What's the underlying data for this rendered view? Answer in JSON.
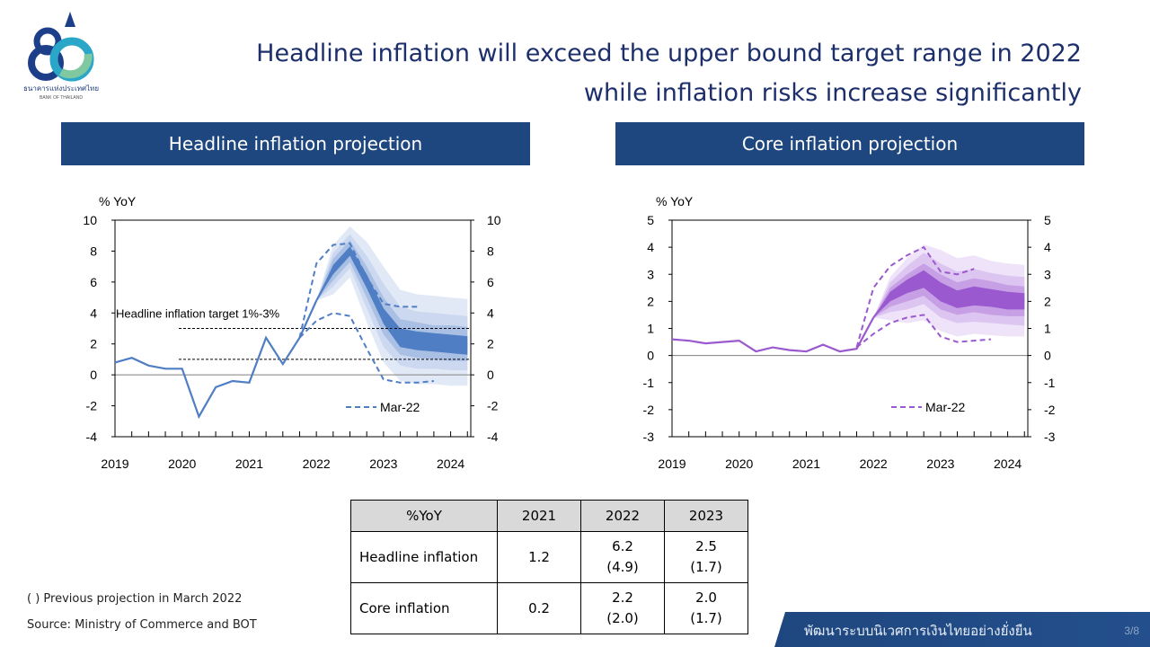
{
  "logo": {
    "thai": "ธนาคารแห่งประเทศไทย",
    "english": "BANK OF THAILAND",
    "mark": "80",
    "colors": [
      "#1d3f8a",
      "#2aa7c8",
      "#7fc8a0"
    ]
  },
  "title": {
    "line1": "Headline inflation will exceed the upper bound target range in 2022",
    "line2": "while inflation risks increase significantly"
  },
  "panels": {
    "left": "Headline inflation projection",
    "right": "Core inflation projection"
  },
  "chart_data": [
    {
      "type": "line",
      "title": "Headline inflation projection",
      "ylabel": "% YoY",
      "ylim": [
        -4,
        10
      ],
      "yticks": [
        "10",
        "8",
        "6",
        "4",
        "2",
        "0",
        "-2",
        "-4"
      ],
      "xticks": [
        "2019",
        "2020",
        "2021",
        "2022",
        "2023",
        "2024"
      ],
      "right_axis": true,
      "annotation": "Headline inflation target 1%-3%",
      "target_range": [
        1,
        3
      ],
      "colors": {
        "line": "#4f7ec4",
        "fan": [
          "#e2e9f6",
          "#cbd8ef",
          "#a9bfe4",
          "#4f7ec4"
        ]
      },
      "series": [
        {
          "role": "actual",
          "x": [
            2019.0,
            2019.25,
            2019.5,
            2019.75,
            2020.0,
            2020.25,
            2020.5,
            2020.75,
            2021.0,
            2021.25,
            2021.5,
            2021.75,
            2022.0
          ],
          "y": [
            0.8,
            1.1,
            0.6,
            0.4,
            0.4,
            -2.7,
            -0.8,
            -0.4,
            -0.5,
            2.4,
            0.7,
            2.4,
            4.8
          ]
        },
        {
          "role": "projection",
          "x": [
            2022.0,
            2022.25,
            2022.5,
            2022.75,
            2023.0,
            2023.25,
            2023.5,
            2023.75,
            2024.0,
            2024.25
          ],
          "y": [
            4.8,
            6.8,
            8.0,
            6.0,
            3.8,
            2.4,
            2.2,
            2.1,
            2.0,
            1.9
          ]
        },
        {
          "name": "Mar-22",
          "role": "previous_upper",
          "dashed": true,
          "x": [
            2021.75,
            2022.0,
            2022.25,
            2022.5,
            2022.75,
            2023.0,
            2023.25,
            2023.5
          ],
          "y": [
            2.4,
            7.2,
            8.4,
            8.5,
            6.3,
            4.6,
            4.4,
            4.4
          ]
        },
        {
          "role": "previous_lower",
          "dashed": true,
          "x": [
            2021.75,
            2022.0,
            2022.25,
            2022.5,
            2022.75,
            2023.0,
            2023.25,
            2023.5,
            2023.75
          ],
          "y": [
            2.4,
            3.5,
            4.0,
            3.8,
            1.7,
            -0.3,
            -0.5,
            -0.5,
            -0.4
          ]
        }
      ],
      "fan": {
        "x": [
          2022.0,
          2022.25,
          2022.5,
          2022.75,
          2023.0,
          2023.25,
          2023.5,
          2023.75,
          2024.0,
          2024.25
        ],
        "bands": [
          {
            "lower": [
              4.8,
              5.2,
              6.3,
              3.4,
              0.8,
              -0.4,
              -0.6,
              -0.6,
              -0.7,
              -0.7
            ],
            "upper": [
              4.8,
              8.4,
              9.6,
              8.6,
              7.0,
              5.5,
              5.2,
              5.1,
              5.0,
              4.9
            ]
          },
          {
            "lower": [
              4.8,
              5.7,
              6.9,
              4.3,
              1.8,
              0.6,
              0.4,
              0.4,
              0.3,
              0.3
            ],
            "upper": [
              4.8,
              7.9,
              9.1,
              7.7,
              5.9,
              4.4,
              4.1,
              4.0,
              3.9,
              3.8
            ]
          },
          {
            "lower": [
              4.8,
              6.1,
              7.3,
              5.0,
              2.6,
              1.3,
              1.1,
              1.0,
              0.9,
              0.9
            ],
            "upper": [
              4.8,
              7.5,
              8.7,
              7.0,
              5.0,
              3.6,
              3.4,
              3.2,
              3.2,
              3.1
            ]
          },
          {
            "lower": [
              4.8,
              6.5,
              7.7,
              5.6,
              3.3,
              1.8,
              1.6,
              1.5,
              1.4,
              1.3
            ],
            "upper": [
              4.8,
              7.1,
              8.3,
              6.5,
              4.3,
              3.0,
              2.8,
              2.7,
              2.6,
              2.5
            ]
          }
        ]
      }
    },
    {
      "type": "line",
      "title": "Core inflation projection",
      "ylabel": "% YoY",
      "ylim": [
        -3,
        5
      ],
      "yticks": [
        "5",
        "4",
        "3",
        "2",
        "1",
        "0",
        "-1",
        "-2",
        "-3"
      ],
      "xticks": [
        "2019",
        "2020",
        "2021",
        "2022",
        "2023",
        "2024"
      ],
      "right_axis": true,
      "colors": {
        "line": "#9b59d0",
        "fan": [
          "#eee3f8",
          "#dcc5f0",
          "#c69fe5",
          "#9b59d0"
        ]
      },
      "series": [
        {
          "role": "actual",
          "x": [
            2019.0,
            2019.25,
            2019.5,
            2019.75,
            2020.0,
            2020.25,
            2020.5,
            2020.75,
            2021.0,
            2021.25,
            2021.5,
            2021.75,
            2022.0
          ],
          "y": [
            0.6,
            0.55,
            0.45,
            0.5,
            0.55,
            0.15,
            0.3,
            0.2,
            0.15,
            0.4,
            0.15,
            0.25,
            1.4
          ]
        },
        {
          "role": "projection",
          "x": [
            2022.0,
            2022.25,
            2022.5,
            2022.75,
            2023.0,
            2023.25,
            2023.5,
            2023.75,
            2024.0,
            2024.25
          ],
          "y": [
            1.4,
            2.2,
            2.6,
            2.9,
            2.4,
            2.1,
            2.2,
            2.1,
            2.0,
            2.0
          ]
        },
        {
          "name": "Mar-22",
          "role": "previous_upper",
          "dashed": true,
          "x": [
            2021.75,
            2022.0,
            2022.25,
            2022.5,
            2022.75,
            2023.0,
            2023.25,
            2023.5
          ],
          "y": [
            0.3,
            2.5,
            3.3,
            3.7,
            4.0,
            3.1,
            3.0,
            3.2
          ]
        },
        {
          "role": "previous_lower",
          "dashed": true,
          "x": [
            2021.75,
            2022.0,
            2022.25,
            2022.5,
            2022.75,
            2023.0,
            2023.25,
            2023.5,
            2023.75
          ],
          "y": [
            0.3,
            0.8,
            1.2,
            1.4,
            1.5,
            0.7,
            0.5,
            0.55,
            0.6
          ]
        }
      ],
      "fan": {
        "x": [
          2022.0,
          2022.25,
          2022.5,
          2022.75,
          2023.0,
          2023.25,
          2023.5,
          2023.75,
          2024.0,
          2024.25
        ],
        "bands": [
          {
            "lower": [
              1.4,
              1.3,
              1.2,
              1.3,
              0.9,
              0.7,
              0.8,
              0.75,
              0.7,
              0.7
            ],
            "upper": [
              1.4,
              2.9,
              3.6,
              4.1,
              3.9,
              3.6,
              3.7,
              3.5,
              3.4,
              3.35
            ]
          },
          {
            "lower": [
              1.4,
              1.6,
              1.7,
              1.9,
              1.4,
              1.2,
              1.25,
              1.2,
              1.15,
              1.1
            ],
            "upper": [
              1.4,
              2.7,
              3.3,
              3.8,
              3.4,
              3.1,
              3.2,
              3.05,
              2.95,
              2.9
            ]
          },
          {
            "lower": [
              1.4,
              1.8,
              2.0,
              2.2,
              1.7,
              1.5,
              1.6,
              1.5,
              1.45,
              1.45
            ],
            "upper": [
              1.4,
              2.5,
              3.0,
              3.4,
              3.0,
              2.7,
              2.85,
              2.75,
              2.6,
              2.55
            ]
          },
          {
            "lower": [
              1.4,
              2.0,
              2.3,
              2.5,
              2.0,
              1.75,
              1.85,
              1.8,
              1.7,
              1.7
            ],
            "upper": [
              1.4,
              2.35,
              2.8,
              3.15,
              2.7,
              2.4,
              2.55,
              2.45,
              2.35,
              2.3
            ]
          }
        ]
      }
    }
  ],
  "table": {
    "header": [
      "%YoY",
      "2021",
      "2022",
      "2023"
    ],
    "rows": [
      {
        "label": "Headline inflation",
        "y2021": "1.2",
        "y2022": "6.2",
        "y2022_prev": "(4.9)",
        "y2023": "2.5",
        "y2023_prev": "(1.7)"
      },
      {
        "label": "Core inflation",
        "y2021": "0.2",
        "y2022": "2.2",
        "y2022_prev": "(2.0)",
        "y2023": "2.0",
        "y2023_prev": "(1.7)"
      }
    ]
  },
  "notes": {
    "previous": "( ) Previous projection in March 2022",
    "source": "Source: Ministry of Commerce and BOT"
  },
  "footer": {
    "slogan": "พัฒนาระบบนิเวศการเงินไทยอย่างยั่งยืน",
    "page": "3/8"
  }
}
